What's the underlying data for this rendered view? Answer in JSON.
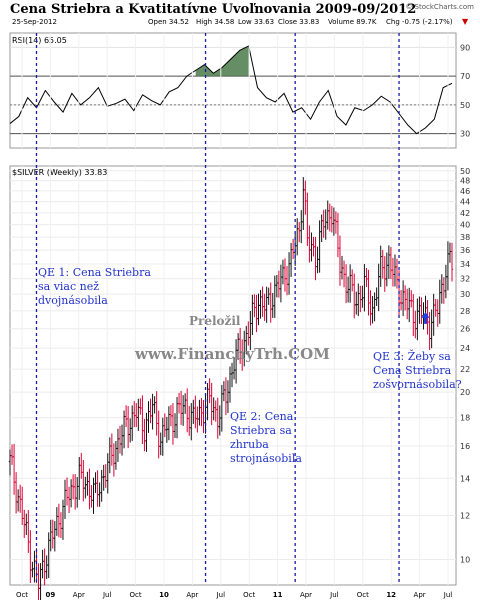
{
  "title": "Cena Striebra a Kvatitatívne Uvoľnovania 2009-09/2012",
  "watermark": "© StockCharts.com",
  "header": {
    "date": "25-Sep-2012",
    "open": "Open 34.52",
    "high": "High 34.58",
    "low": "Low 33.63",
    "close": "Close 33.83",
    "volume": "Volume 89.7K",
    "chg": "Chg -0.75 (-2.17%)"
  },
  "annotations": {
    "qe1": [
      "QE 1: Cena Striebra",
      "sa viac než",
      "dvojnásobila"
    ],
    "qe2": [
      "QE 2: Cena",
      "Striebra sa",
      "zhruba",
      "strojnásobila"
    ],
    "qe3": [
      "QE 3: Žeby sa",
      "Cena Striebra",
      "zošvornásobila?"
    ],
    "prelozil": "Preložil",
    "site": "www.FinancnyTrh.COM"
  },
  "colors": {
    "up": "#111111",
    "down": "#dd0033",
    "rsi_line": "#000000",
    "rsi_fill": "#4a7a4a",
    "qe_line": "#1a1aaa",
    "annotation": "#2233cc",
    "arrow": "#1a44dd"
  },
  "chart_data": [
    {
      "type": "line",
      "series": [
        {
          "name": "RSI(14) 65.05",
          "x": [
            0,
            4,
            8,
            12,
            16,
            20,
            24,
            28,
            32,
            36,
            40,
            44,
            48,
            52,
            56,
            60,
            64,
            68,
            72,
            76,
            80,
            84,
            88,
            92,
            96,
            100,
            104,
            108,
            112,
            116,
            120,
            124,
            128,
            132,
            136,
            140,
            144,
            148,
            152,
            156,
            160,
            164,
            168,
            172,
            176,
            180,
            184,
            188,
            192,
            196,
            200
          ],
          "values": [
            37,
            42,
            55,
            48,
            60,
            52,
            45,
            58,
            50,
            55,
            62,
            49,
            51,
            54,
            46,
            57,
            53,
            50,
            59,
            62,
            70,
            74,
            78,
            72,
            76,
            82,
            88,
            91,
            62,
            55,
            52,
            58,
            45,
            48,
            40,
            52,
            60,
            42,
            36,
            48,
            46,
            50,
            56,
            52,
            44,
            36,
            30,
            34,
            40,
            62,
            65
          ]
        }
      ],
      "ylim": [
        20,
        100
      ],
      "yticks": [
        30,
        50,
        70,
        90
      ],
      "reference_lines": [
        30,
        50,
        70
      ]
    },
    {
      "type": "candlestick",
      "series": [
        {
          "name": "$SILVER (Weekly) 33.83"
        }
      ],
      "yticks": [
        10,
        12,
        14,
        16,
        18,
        20,
        22,
        24,
        26,
        28,
        30,
        32,
        34,
        36,
        38,
        40,
        42,
        44,
        46,
        48,
        50
      ],
      "xticks": [
        "Oct",
        "09",
        "Apr",
        "Jul",
        "Oct",
        "10",
        "Apr",
        "Jul",
        "Oct",
        "11",
        "Apr",
        "Jul",
        "Oct",
        "12",
        "Apr",
        "Jul"
      ],
      "log_scale": true,
      "close_path": [
        [
          0,
          15
        ],
        [
          6,
          12
        ],
        [
          10,
          10.2
        ],
        [
          14,
          9.0
        ],
        [
          18,
          10.3
        ],
        [
          22,
          11.3
        ],
        [
          26,
          12.4
        ],
        [
          30,
          13.3
        ],
        [
          34,
          14.0
        ],
        [
          38,
          13.6
        ],
        [
          42,
          13.0
        ],
        [
          46,
          14.2
        ],
        [
          50,
          15.3
        ],
        [
          54,
          16.6
        ],
        [
          58,
          17.6
        ],
        [
          62,
          18.4
        ],
        [
          66,
          17.3
        ],
        [
          70,
          18.8
        ],
        [
          74,
          16.5
        ],
        [
          78,
          17.6
        ],
        [
          82,
          18.4
        ],
        [
          86,
          18.8
        ],
        [
          90,
          17.8
        ],
        [
          94,
          18.5
        ],
        [
          98,
          19.3
        ],
        [
          102,
          18.1
        ],
        [
          106,
          19.7
        ],
        [
          110,
          22.8
        ],
        [
          114,
          24.1
        ],
        [
          118,
          26.5
        ],
        [
          122,
          29.3
        ],
        [
          126,
          28.3
        ],
        [
          130,
          30.6
        ],
        [
          134,
          31.9
        ],
        [
          138,
          34.8
        ],
        [
          142,
          38.8
        ],
        [
          144,
          47.5
        ],
        [
          146,
          37.1
        ],
        [
          150,
          35.2
        ],
        [
          154,
          40.1
        ],
        [
          158,
          42.6
        ],
        [
          162,
          33.8
        ],
        [
          166,
          31.1
        ],
        [
          170,
          29.2
        ],
        [
          174,
          31.0
        ],
        [
          178,
          28.1
        ],
        [
          182,
          33.0
        ],
        [
          186,
          34.6
        ],
        [
          190,
          31.0
        ],
        [
          194,
          29.1
        ],
        [
          198,
          27.6
        ],
        [
          202,
          27.7
        ],
        [
          206,
          26.7
        ],
        [
          210,
          28.1
        ],
        [
          214,
          33.5
        ],
        [
          216,
          34.5
        ],
        [
          217,
          33.83
        ]
      ],
      "qe_vertical_lines": [
        "QE1 start (Nov 2008)",
        "QE1 end (Mar 2010)",
        "QE2 start (Aug 2010)",
        "QE2 end (Jun 2011)"
      ]
    }
  ]
}
